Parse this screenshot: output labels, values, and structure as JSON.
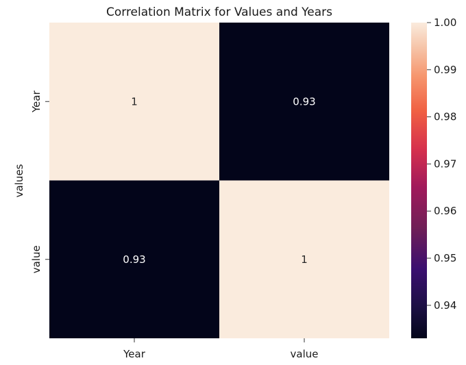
{
  "chart_data": {
    "type": "heatmap",
    "title": "Correlation Matrix for Values and Years",
    "xlabel": "",
    "ylabel": "values",
    "x_categories": [
      "Year",
      "value"
    ],
    "y_categories": [
      "Year",
      "value"
    ],
    "values": [
      [
        1,
        0.93
      ],
      [
        0.93,
        1
      ]
    ],
    "cell_labels": [
      [
        "1",
        "0.93"
      ],
      [
        "0.93",
        "1"
      ]
    ],
    "colorbar": {
      "colormap": "rocket",
      "range": [
        0.933,
        1.0
      ],
      "ticks": [
        0.94,
        0.95,
        0.96,
        0.97,
        0.98,
        0.99,
        1.0
      ],
      "tick_labels": [
        "0.94",
        "0.95",
        "0.96",
        "0.97",
        "0.98",
        "0.99",
        "1.00"
      ]
    },
    "colors": {
      "high": "#faebdd",
      "low": "#03051a",
      "text_on_dark": "#ffffff",
      "text_on_light": "#262626"
    },
    "grid": false,
    "legend": "colorbar-right"
  }
}
